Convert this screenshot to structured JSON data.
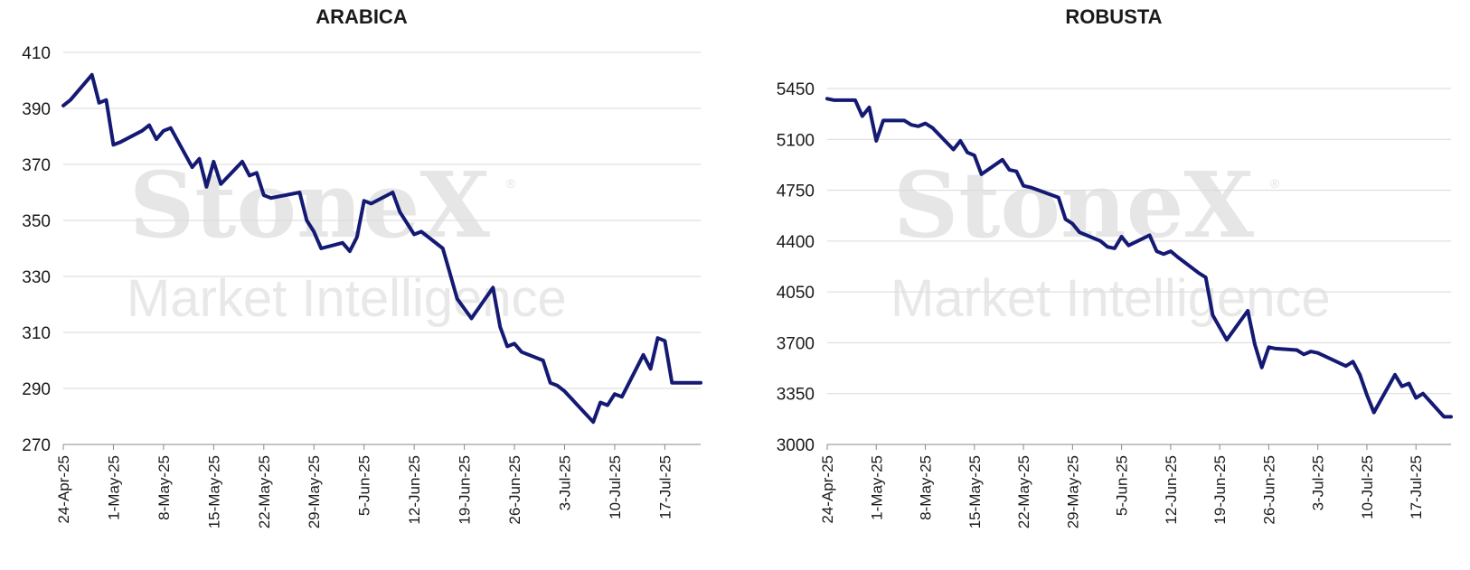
{
  "watermark": {
    "brand": "StoneX",
    "sub": "Market Intelligence",
    "mark": "®"
  },
  "colors": {
    "line": "#141a73",
    "grid": "#d9d9d9",
    "axis": "#888888"
  },
  "x_tick_labels": [
    "24-Apr-25",
    "1-May-25",
    "8-May-25",
    "15-May-25",
    "22-May-25",
    "29-May-25",
    "5-Jun-25",
    "12-Jun-25",
    "19-Jun-25",
    "26-Jun-25",
    "3-Jul-25",
    "10-Jul-25",
    "17-Jul-25"
  ],
  "chart_data": [
    {
      "type": "line",
      "title": "ARABICA",
      "xlabel": "",
      "ylabel": "",
      "ylim": [
        270,
        410
      ],
      "yticks": [
        270,
        290,
        310,
        330,
        350,
        370,
        390,
        410
      ],
      "grid": true,
      "series": [
        {
          "x": [
            "24-Apr-25",
            "25-Apr-25",
            "28-Apr-25",
            "29-Apr-25",
            "30-Apr-25",
            "1-May-25",
            "2-May-25",
            "5-May-25",
            "6-May-25",
            "7-May-25",
            "8-May-25",
            "9-May-25",
            "12-May-25",
            "13-May-25",
            "14-May-25",
            "15-May-25",
            "16-May-25",
            "19-May-25",
            "20-May-25",
            "21-May-25",
            "22-May-25",
            "23-May-25",
            "27-May-25",
            "28-May-25",
            "29-May-25",
            "30-May-25",
            "2-Jun-25",
            "3-Jun-25",
            "4-Jun-25",
            "5-Jun-25",
            "6-Jun-25",
            "9-Jun-25",
            "10-Jun-25",
            "11-Jun-25",
            "12-Jun-25",
            "13-Jun-25",
            "16-Jun-25",
            "17-Jun-25",
            "18-Jun-25",
            "20-Jun-25",
            "23-Jun-25",
            "24-Jun-25",
            "25-Jun-25",
            "26-Jun-25",
            "27-Jun-25",
            "30-Jun-25",
            "1-Jul-25",
            "2-Jul-25",
            "3-Jul-25",
            "7-Jul-25",
            "8-Jul-25",
            "9-Jul-25",
            "10-Jul-25",
            "11-Jul-25",
            "14-Jul-25",
            "15-Jul-25",
            "16-Jul-25",
            "17-Jul-25",
            "18-Jul-25",
            "21-Jul-25",
            "22-Jul-25"
          ],
          "values": [
            391,
            393,
            402,
            392,
            393,
            377,
            378,
            382,
            384,
            379,
            382,
            383,
            369,
            372,
            362,
            371,
            363,
            371,
            366,
            367,
            359,
            358,
            360,
            350,
            346,
            340,
            342,
            339,
            344,
            357,
            356,
            360,
            353,
            349,
            345,
            346,
            340,
            331,
            322,
            315,
            326,
            312,
            305,
            306,
            303,
            300,
            292,
            291,
            289,
            278,
            285,
            284,
            288,
            287,
            302,
            297,
            308,
            307,
            292,
            292,
            292
          ]
        }
      ]
    },
    {
      "type": "line",
      "title": "ROBUSTA",
      "xlabel": "",
      "ylabel": "",
      "ylim": [
        3000,
        5450
      ],
      "yticks": [
        3000,
        3350,
        3700,
        4050,
        4400,
        4750,
        5100,
        5450
      ],
      "grid": true,
      "series": [
        {
          "x": [
            "24-Apr-25",
            "25-Apr-25",
            "28-Apr-25",
            "29-Apr-25",
            "30-Apr-25",
            "1-May-25",
            "2-May-25",
            "5-May-25",
            "6-May-25",
            "7-May-25",
            "8-May-25",
            "9-May-25",
            "12-May-25",
            "13-May-25",
            "14-May-25",
            "15-May-25",
            "16-May-25",
            "19-May-25",
            "20-May-25",
            "21-May-25",
            "22-May-25",
            "23-May-25",
            "27-May-25",
            "28-May-25",
            "29-May-25",
            "30-May-25",
            "2-Jun-25",
            "3-Jun-25",
            "4-Jun-25",
            "5-Jun-25",
            "6-Jun-25",
            "9-Jun-25",
            "10-Jun-25",
            "11-Jun-25",
            "12-Jun-25",
            "13-Jun-25",
            "16-Jun-25",
            "17-Jun-25",
            "18-Jun-25",
            "20-Jun-25",
            "23-Jun-25",
            "24-Jun-25",
            "25-Jun-25",
            "26-Jun-25",
            "27-Jun-25",
            "30-Jun-25",
            "1-Jul-25",
            "2-Jul-25",
            "3-Jul-25",
            "7-Jul-25",
            "8-Jul-25",
            "9-Jul-25",
            "10-Jul-25",
            "11-Jul-25",
            "14-Jul-25",
            "15-Jul-25",
            "16-Jul-25",
            "17-Jul-25",
            "18-Jul-25",
            "21-Jul-25",
            "22-Jul-25"
          ],
          "values": [
            5380,
            5370,
            5370,
            5260,
            5320,
            5090,
            5230,
            5230,
            5200,
            5190,
            5210,
            5180,
            5030,
            5090,
            5010,
            4990,
            4860,
            4960,
            4890,
            4880,
            4780,
            4770,
            4700,
            4550,
            4520,
            4460,
            4400,
            4360,
            4350,
            4430,
            4370,
            4440,
            4330,
            4310,
            4330,
            4290,
            4180,
            4150,
            3890,
            3720,
            3920,
            3690,
            3530,
            3670,
            3660,
            3650,
            3620,
            3640,
            3630,
            3540,
            3570,
            3480,
            3340,
            3220,
            3480,
            3400,
            3420,
            3320,
            3350,
            3190,
            3190
          ]
        }
      ]
    }
  ]
}
